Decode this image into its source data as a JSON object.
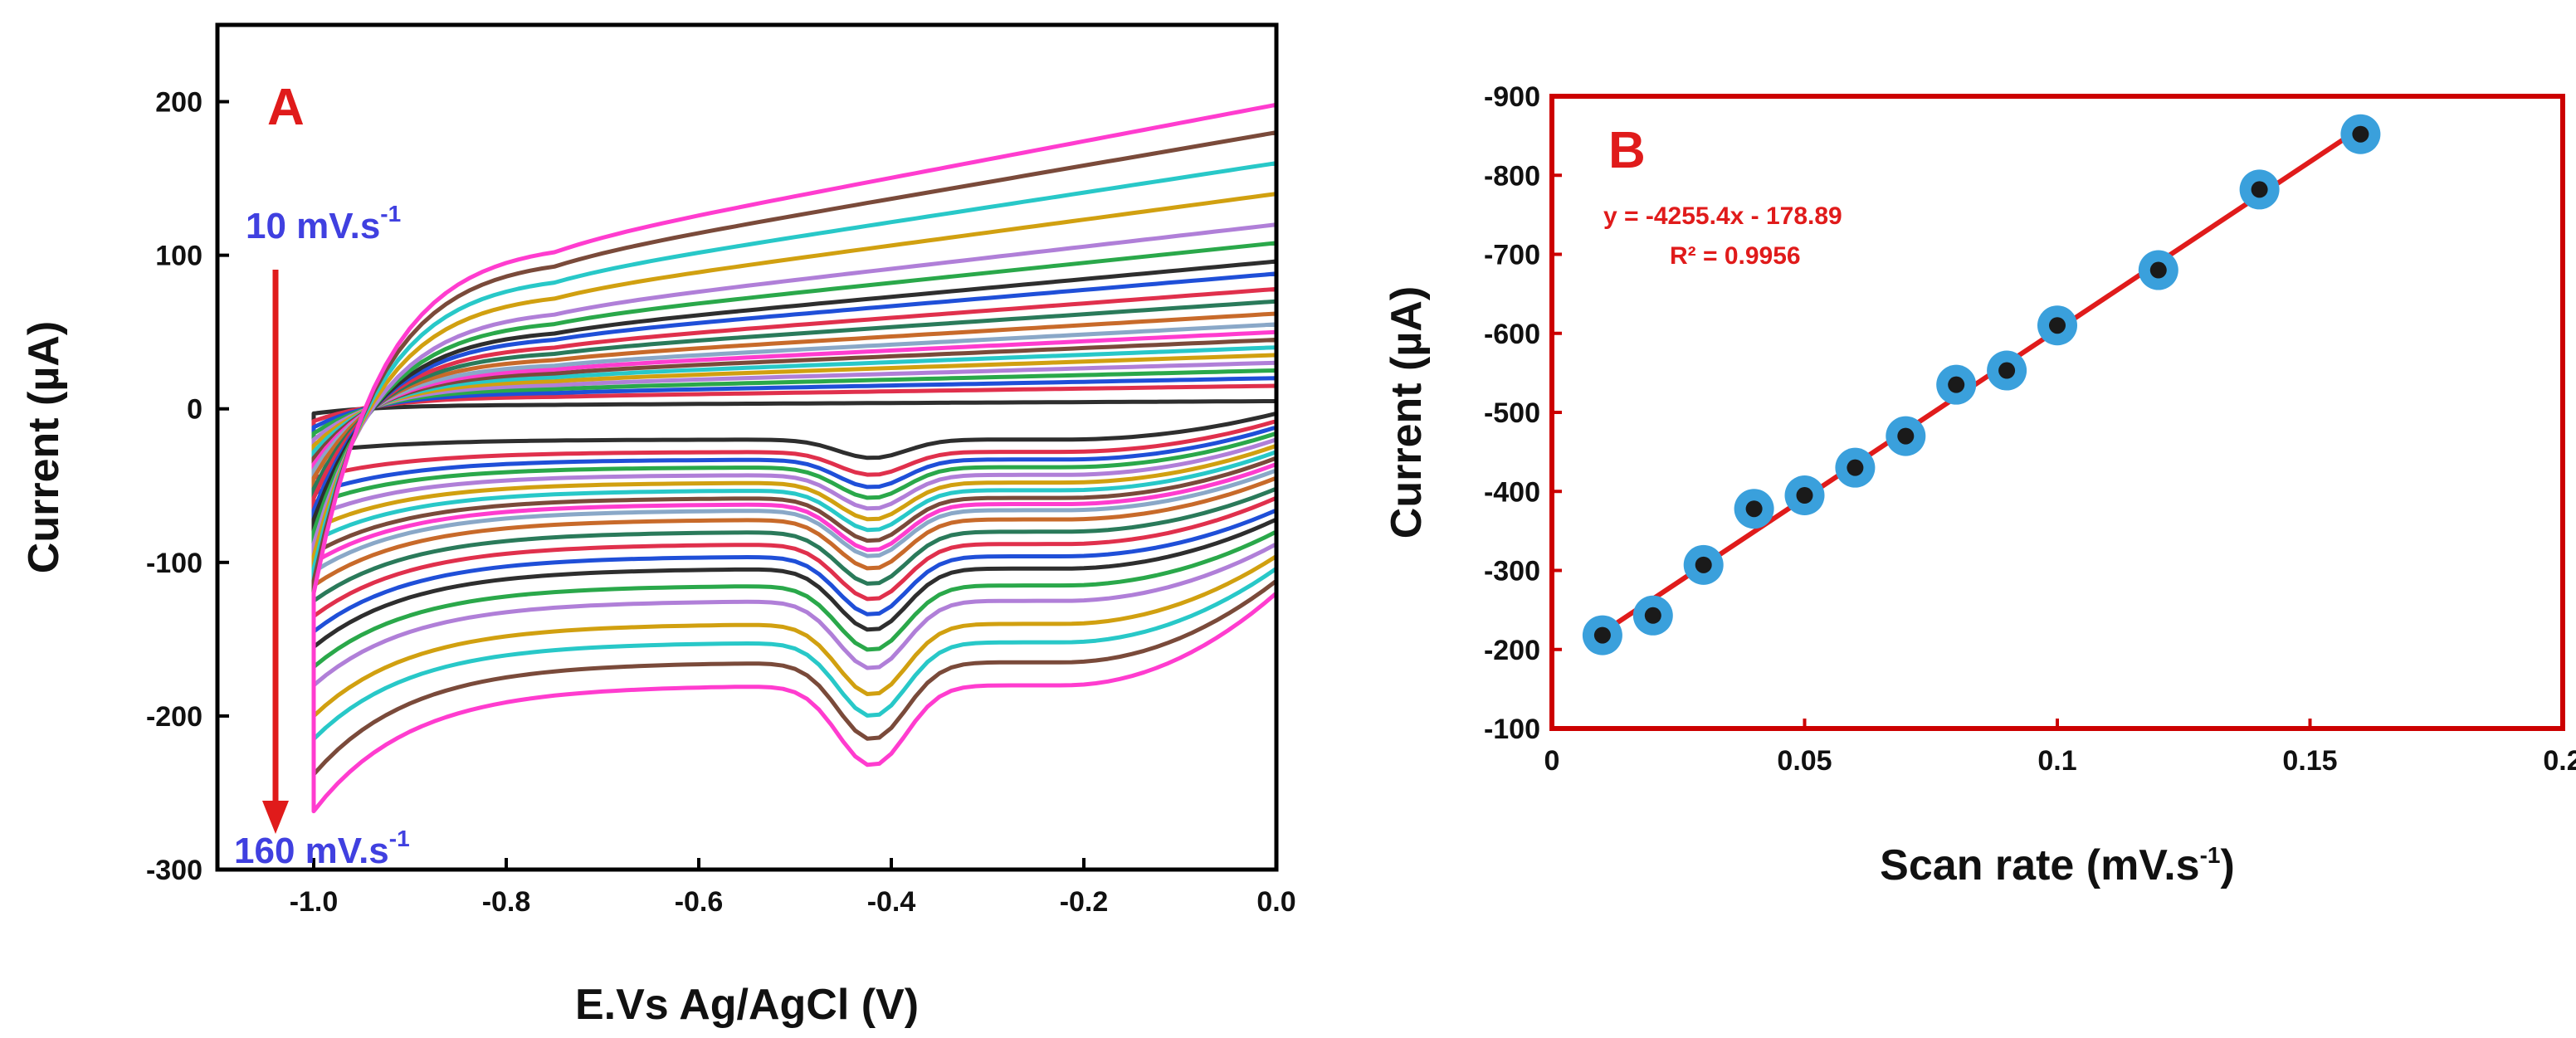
{
  "chart_data": [
    {
      "id": "A",
      "type": "line",
      "panel_label": "A",
      "title": "",
      "xlabel": "E.Vs Ag/AgCl (V)",
      "ylabel": "Current (µA)",
      "xlim": [
        -1.1,
        0.0
      ],
      "ylim": [
        -300,
        250
      ],
      "x_ticks": [
        -1.0,
        -0.8,
        -0.6,
        -0.4,
        -0.2,
        0.0
      ],
      "x_tick_labels": [
        "-1.0",
        "-0.8",
        "-0.6",
        "-0.4",
        "-0.2",
        "0.0"
      ],
      "y_ticks": [
        200,
        100,
        0,
        -100,
        -200,
        -300
      ],
      "y_tick_labels": [
        "200",
        "100",
        "0",
        "-100",
        "-200",
        "-300"
      ],
      "annotations": {
        "start_label": "10 mV.s",
        "start_sup": "-1",
        "end_label": "160 mV.s",
        "end_sup": "-1"
      },
      "arrow_direction": "down",
      "series": [
        {
          "name": "s1",
          "color": "#2e2e2e",
          "upper_end": 5,
          "upper_start": -3,
          "lower_end": -3,
          "lower_plateau": -20,
          "lower_start": -28,
          "peak_depth": 12
        },
        {
          "name": "s2",
          "color": "#e0304c",
          "upper_end": 15,
          "upper_start": -8,
          "lower_end": -8,
          "lower_plateau": -28,
          "lower_start": -45,
          "peak_depth": 15
        },
        {
          "name": "s3",
          "color": "#1f4fd8",
          "upper_end": 20,
          "upper_start": -12,
          "lower_end": -12,
          "lower_plateau": -33,
          "lower_start": -55,
          "peak_depth": 18
        },
        {
          "name": "s4",
          "color": "#2aa84a",
          "upper_end": 25,
          "upper_start": -16,
          "lower_end": -16,
          "lower_plateau": -38,
          "lower_start": -62,
          "peak_depth": 20
        },
        {
          "name": "s5",
          "color": "#b07fd8",
          "upper_end": 30,
          "upper_start": -20,
          "lower_end": -20,
          "lower_plateau": -43,
          "lower_start": -70,
          "peak_depth": 22
        },
        {
          "name": "s6",
          "color": "#d1a010",
          "upper_end": 35,
          "upper_start": -24,
          "lower_end": -24,
          "lower_plateau": -48,
          "lower_start": -78,
          "peak_depth": 24
        },
        {
          "name": "s7",
          "color": "#28c8c8",
          "upper_end": 40,
          "upper_start": -28,
          "lower_end": -28,
          "lower_plateau": -53,
          "lower_start": -86,
          "peak_depth": 26
        },
        {
          "name": "s8",
          "color": "#7a4a3a",
          "upper_end": 45,
          "upper_start": -32,
          "lower_end": -32,
          "lower_plateau": -58,
          "lower_start": -94,
          "peak_depth": 28
        },
        {
          "name": "s9",
          "color": "#ff3ccf",
          "upper_end": 50,
          "upper_start": -36,
          "lower_end": -36,
          "lower_plateau": -62,
          "lower_start": -100,
          "peak_depth": 30
        },
        {
          "name": "s10",
          "color": "#8aa8c8",
          "upper_end": 55,
          "upper_start": -40,
          "lower_end": -40,
          "lower_plateau": -66,
          "lower_start": -106,
          "peak_depth": 30
        },
        {
          "name": "s11",
          "color": "#c86a2a",
          "upper_end": 62,
          "upper_start": -45,
          "lower_end": -45,
          "lower_plateau": -72,
          "lower_start": -115,
          "peak_depth": 32
        },
        {
          "name": "s12",
          "color": "#2a7a5a",
          "upper_end": 70,
          "upper_start": -52,
          "lower_end": -52,
          "lower_plateau": -80,
          "lower_start": -125,
          "peak_depth": 34
        },
        {
          "name": "s13",
          "color": "#e0304c",
          "upper_end": 78,
          "upper_start": -58,
          "lower_end": -58,
          "lower_plateau": -88,
          "lower_start": -135,
          "peak_depth": 36
        },
        {
          "name": "s14",
          "color": "#1f4fd8",
          "upper_end": 88,
          "upper_start": -66,
          "lower_end": -66,
          "lower_plateau": -96,
          "lower_start": -145,
          "peak_depth": 38
        },
        {
          "name": "s15",
          "color": "#2e2e2e",
          "upper_end": 96,
          "upper_start": -72,
          "lower_end": -72,
          "lower_plateau": -104,
          "lower_start": -155,
          "peak_depth": 40
        },
        {
          "name": "s16",
          "color": "#2aa84a",
          "upper_end": 108,
          "upper_start": -80,
          "lower_end": -80,
          "lower_plateau": -115,
          "lower_start": -168,
          "peak_depth": 42
        },
        {
          "name": "s17",
          "color": "#b07fd8",
          "upper_end": 120,
          "upper_start": -88,
          "lower_end": -88,
          "lower_plateau": -125,
          "lower_start": -180,
          "peak_depth": 44
        },
        {
          "name": "s18",
          "color": "#d1a010",
          "upper_end": 140,
          "upper_start": -96,
          "lower_end": -96,
          "lower_plateau": -140,
          "lower_start": -200,
          "peak_depth": 46
        },
        {
          "name": "s19",
          "color": "#28c8c8",
          "upper_end": 160,
          "upper_start": -104,
          "lower_end": -104,
          "lower_plateau": -152,
          "lower_start": -215,
          "peak_depth": 48
        },
        {
          "name": "s20",
          "color": "#7a4a3a",
          "upper_end": 180,
          "upper_start": -112,
          "lower_end": -112,
          "lower_plateau": -165,
          "lower_start": -238,
          "peak_depth": 50
        },
        {
          "name": "s21",
          "color": "#ff3ccf",
          "upper_end": 198,
          "upper_start": -120,
          "lower_end": -120,
          "lower_plateau": -180,
          "lower_start": -262,
          "peak_depth": 52
        }
      ]
    },
    {
      "id": "B",
      "type": "scatter",
      "panel_label": "B",
      "title": "",
      "xlabel": "Scan rate (mV.s",
      "xlabel_sup": "-1",
      "xlabel_end": ")",
      "ylabel": "Current (µA)",
      "xlim": [
        0,
        0.2
      ],
      "ylim": [
        -100,
        -900
      ],
      "y_inverted": true,
      "x_ticks": [
        0,
        0.05,
        0.1,
        0.15,
        0.2
      ],
      "x_tick_labels": [
        "0",
        "0.05",
        "0.1",
        "0.15",
        "0.2"
      ],
      "y_ticks": [
        -900,
        -800,
        -700,
        -600,
        -500,
        -400,
        -300,
        -200,
        -100
      ],
      "y_tick_labels": [
        "-900",
        "-800",
        "-700",
        "-600",
        "-500",
        "-400",
        "-300",
        "-200",
        "-100"
      ],
      "x": [
        0.01,
        0.02,
        0.03,
        0.04,
        0.05,
        0.06,
        0.07,
        0.08,
        0.09,
        0.1,
        0.12,
        0.14,
        0.16
      ],
      "y": [
        -218,
        -243,
        -307,
        -378,
        -395,
        -430,
        -470,
        -535,
        -553,
        -610,
        -680,
        -782,
        -852
      ],
      "fit": {
        "slope": -4255.4,
        "intercept": -178.89,
        "equation": "y = -4255.4x - 178.89",
        "r2_text": "R² = 0.9956",
        "x_range": [
          0.01,
          0.16
        ]
      },
      "colors": {
        "marker_halo": "#3aa0dc",
        "marker_core": "#1a1a1a",
        "fit_line": "#e01b1b",
        "frame": "#cc0000"
      }
    }
  ]
}
